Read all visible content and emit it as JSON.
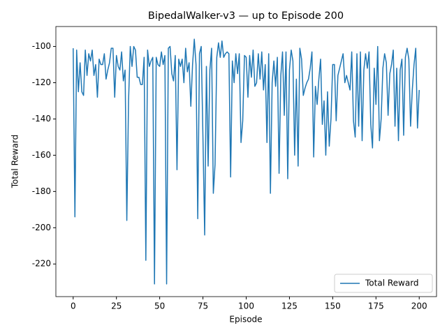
{
  "chart_data": {
    "type": "line",
    "title": "BipedalWalker-v3 — up to Episode 200",
    "x_label": "Episode",
    "y_label": "Total Reward",
    "x": [
      0,
      1,
      2,
      3,
      4,
      5,
      6,
      7,
      8,
      9,
      10,
      11,
      12,
      13,
      14,
      15,
      16,
      17,
      18,
      19,
      20,
      21,
      22,
      23,
      24,
      25,
      26,
      27,
      28,
      29,
      30,
      31,
      32,
      33,
      34,
      35,
      36,
      37,
      38,
      39,
      40,
      41,
      42,
      43,
      44,
      45,
      46,
      47,
      48,
      49,
      50,
      51,
      52,
      53,
      54,
      55,
      56,
      57,
      58,
      59,
      60,
      61,
      62,
      63,
      64,
      65,
      66,
      67,
      68,
      69,
      70,
      71,
      72,
      73,
      74,
      75,
      76,
      77,
      78,
      79,
      80,
      81,
      82,
      83,
      84,
      85,
      86,
      87,
      88,
      89,
      90,
      91,
      92,
      93,
      94,
      95,
      96,
      97,
      98,
      99,
      100,
      101,
      102,
      103,
      104,
      105,
      106,
      107,
      108,
      109,
      110,
      111,
      112,
      113,
      114,
      115,
      116,
      117,
      118,
      119,
      120,
      121,
      122,
      123,
      124,
      125,
      126,
      127,
      128,
      129,
      130,
      131,
      132,
      133,
      134,
      135,
      136,
      137,
      138,
      139,
      140,
      141,
      142,
      143,
      144,
      145,
      146,
      147,
      148,
      149,
      150,
      151,
      152,
      153,
      154,
      155,
      156,
      157,
      158,
      159,
      160,
      161,
      162,
      163,
      164,
      165,
      166,
      167,
      168,
      169,
      170,
      171,
      172,
      173,
      174,
      175,
      176,
      177,
      178,
      179,
      180,
      181,
      182,
      183,
      184,
      185,
      186,
      187,
      188,
      189,
      190,
      191,
      192,
      193,
      194,
      195,
      196,
      197,
      198,
      199,
      200
    ],
    "series": [
      {
        "name": "Total Reward",
        "color": "#1f77b4",
        "values": [
          -101,
          -194,
          -102,
          -125,
          -109,
          -125,
          -127,
          -102,
          -116,
          -104,
          -108,
          -102,
          -116,
          -110,
          -128,
          -107,
          -110,
          -110,
          -104,
          -118,
          -113,
          -109,
          -101,
          -101,
          -128,
          -105,
          -111,
          -113,
          -103,
          -119,
          -113,
          -196,
          -130,
          -100,
          -111,
          -100,
          -102,
          -117,
          -117,
          -121,
          -121,
          -106,
          -218,
          -102,
          -111,
          -108,
          -106,
          -231,
          -106,
          -110,
          -111,
          -103,
          -110,
          -105,
          -231,
          -101,
          -100,
          -115,
          -119,
          -105,
          -168,
          -107,
          -111,
          -107,
          -120,
          -101,
          -114,
          -109,
          -133,
          -110,
          -96,
          -110,
          -195,
          -104,
          -100,
          -150,
          -204,
          -111,
          -166,
          -113,
          -101,
          -181,
          -165,
          -106,
          -98,
          -106,
          -97,
          -106,
          -104,
          -103,
          -104,
          -172,
          -108,
          -120,
          -104,
          -115,
          -104,
          -153,
          -141,
          -105,
          -106,
          -128,
          -105,
          -117,
          -102,
          -122,
          -120,
          -104,
          -118,
          -103,
          -124,
          -110,
          -153,
          -104,
          -181,
          -120,
          -108,
          -122,
          -106,
          -170,
          -116,
          -103,
          -138,
          -103,
          -173,
          -113,
          -102,
          -108,
          -160,
          -118,
          -166,
          -101,
          -107,
          -127,
          -123,
          -120,
          -118,
          -112,
          -103,
          -161,
          -122,
          -132,
          -118,
          -107,
          -143,
          -130,
          -160,
          -125,
          -155,
          -140,
          -110,
          -110,
          -141,
          -116,
          -112,
          -108,
          -104,
          -120,
          -116,
          -120,
          -124,
          -103,
          -141,
          -150,
          -104,
          -144,
          -103,
          -152,
          -113,
          -104,
          -112,
          -103,
          -143,
          -156,
          -112,
          -132,
          -100,
          -152,
          -140,
          -112,
          -104,
          -109,
          -138,
          -115,
          -110,
          -102,
          -144,
          -112,
          -152,
          -113,
          -107,
          -149,
          -106,
          -101,
          -107,
          -144,
          -124,
          -110,
          -101,
          -145,
          -124
        ]
      }
    ],
    "xlim": [
      -10,
      210
    ],
    "ylim": [
      -238,
      -89
    ],
    "xticks": [
      0,
      25,
      50,
      75,
      100,
      125,
      150,
      175,
      200
    ],
    "yticks": [
      -220,
      -200,
      -180,
      -160,
      -140,
      -120,
      -100
    ],
    "legend": "lower right"
  }
}
